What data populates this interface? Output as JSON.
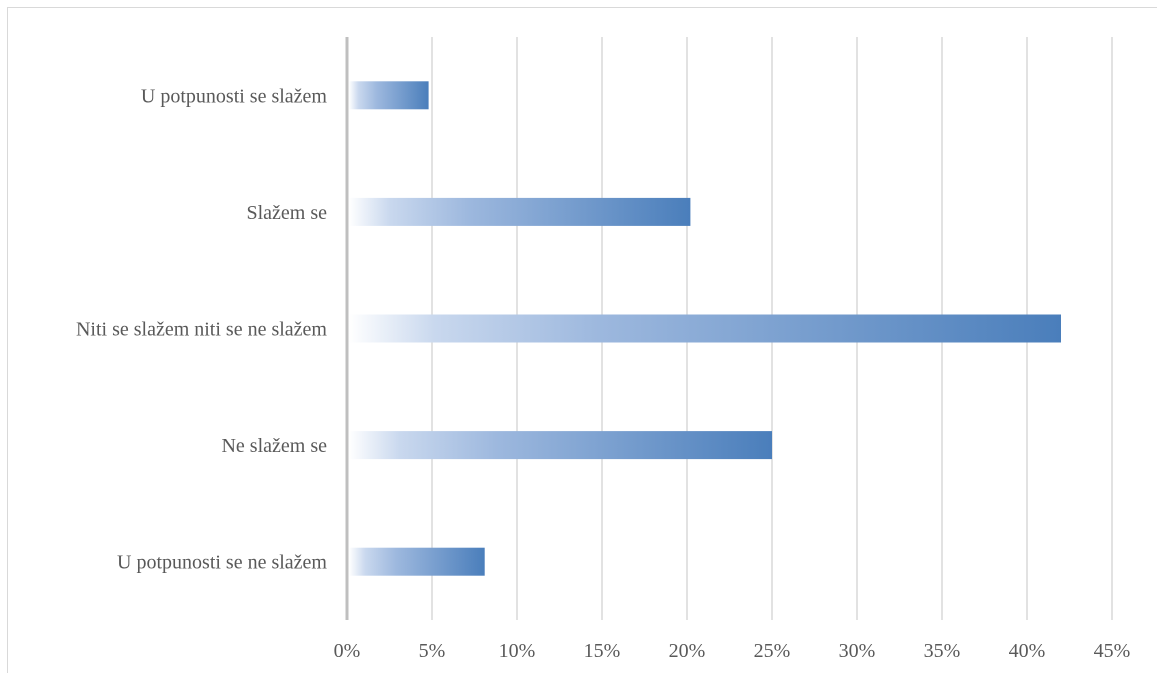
{
  "chart_data": {
    "type": "bar",
    "orientation": "horizontal",
    "categories": [
      "U potpunosti se slažem",
      "Slažem se",
      "Niti se slažem niti se ne slažem",
      "Ne slažem se",
      "U potpunosti se ne slažem"
    ],
    "values": [
      4.8,
      20.2,
      42.0,
      25.0,
      8.1
    ],
    "value_unit": "%",
    "xlim": [
      0,
      45
    ],
    "x_ticks": [
      "0%",
      "5%",
      "10%",
      "15%",
      "20%",
      "25%",
      "30%",
      "35%",
      "40%",
      "45%"
    ],
    "x_tick_values": [
      0,
      5,
      10,
      15,
      20,
      25,
      30,
      35,
      40,
      45
    ],
    "grid": "vertical",
    "legend": "none",
    "bar_fill": "gradient white to blue",
    "colors": {
      "bar_end": "#4a7ebb",
      "bar_start": "#ffffff",
      "grid": "#d9d9d9",
      "text": "#595959"
    }
  }
}
